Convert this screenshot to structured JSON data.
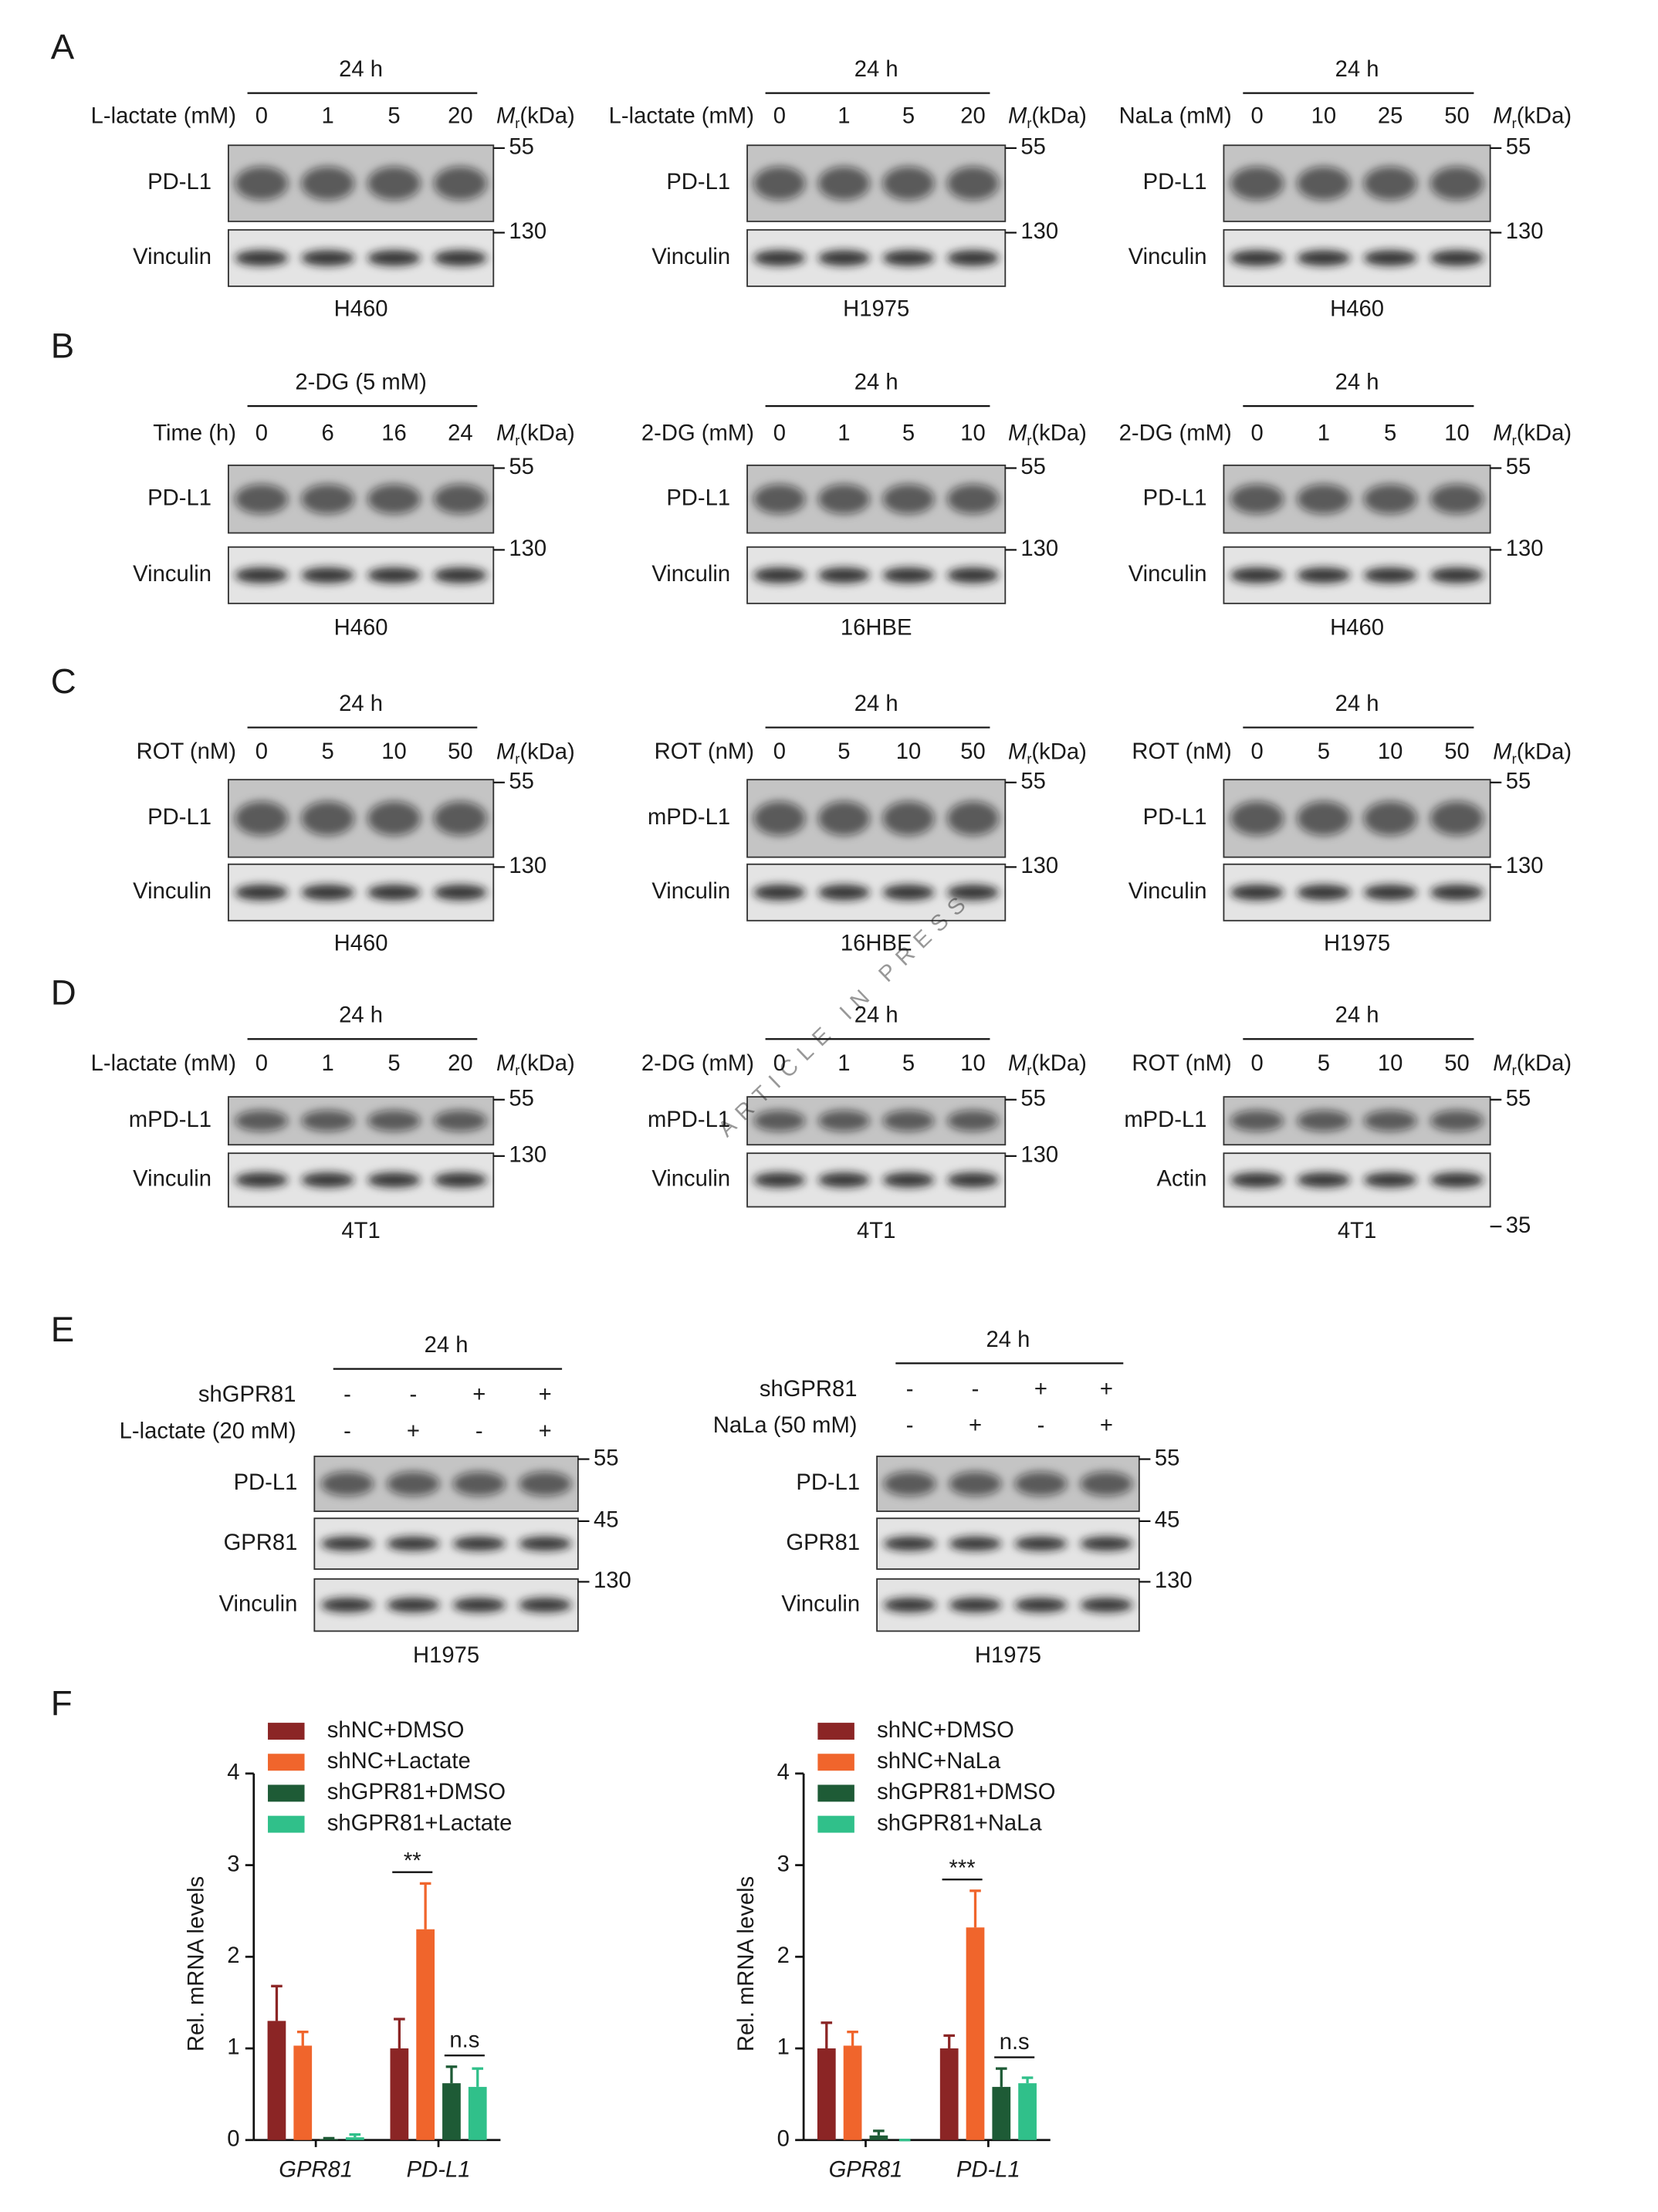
{
  "watermark": "ARTICLE IN PRESS",
  "mr": {
    "symbol": "M",
    "subscript": "r",
    "unit": "(kDa)"
  },
  "panels": [
    {
      "letter": "A",
      "blots": [
        {
          "header": "24 h",
          "conditions": [
            {
              "label": "L-lactate (mM)",
              "lanes": [
                0,
                1,
                5,
                20
              ]
            }
          ],
          "rows": [
            {
              "label": "PD-L1",
              "marker": 55
            },
            {
              "label": "Vinculin",
              "marker": 130
            }
          ],
          "cell": "H460"
        },
        {
          "header": "24 h",
          "conditions": [
            {
              "label": "L-lactate (mM)",
              "lanes": [
                0,
                1,
                5,
                20
              ]
            }
          ],
          "rows": [
            {
              "label": "PD-L1",
              "marker": 55
            },
            {
              "label": "Vinculin",
              "marker": 130
            }
          ],
          "cell": "H1975"
        },
        {
          "header": "24 h",
          "conditions": [
            {
              "label": "NaLa (mM)",
              "lanes": [
                0,
                10,
                25,
                50
              ]
            }
          ],
          "rows": [
            {
              "label": "PD-L1",
              "marker": 55
            },
            {
              "label": "Vinculin",
              "marker": 130
            }
          ],
          "cell": "H460"
        }
      ]
    },
    {
      "letter": "B",
      "blots": [
        {
          "header": "2-DG (5 mM)",
          "conditions": [
            {
              "label": "Time (h)",
              "lanes": [
                0,
                6,
                16,
                24
              ]
            }
          ],
          "rows": [
            {
              "label": "PD-L1",
              "marker": 55
            },
            {
              "label": "Vinculin",
              "marker": 130
            }
          ],
          "cell": "H460"
        },
        {
          "header": "24 h",
          "conditions": [
            {
              "label": "2-DG (mM)",
              "lanes": [
                0,
                1,
                5,
                10
              ]
            }
          ],
          "rows": [
            {
              "label": "PD-L1",
              "marker": 55
            },
            {
              "label": "Vinculin",
              "marker": 130
            }
          ],
          "cell": "16HBE"
        },
        {
          "header": "24 h",
          "conditions": [
            {
              "label": "2-DG (mM)",
              "lanes": [
                0,
                1,
                5,
                10
              ]
            }
          ],
          "rows": [
            {
              "label": "PD-L1",
              "marker": 55
            },
            {
              "label": "Vinculin",
              "marker": 130
            }
          ],
          "cell": "H460"
        }
      ]
    },
    {
      "letter": "C",
      "blots": [
        {
          "header": "24 h",
          "conditions": [
            {
              "label": "ROT (nM)",
              "lanes": [
                0,
                5,
                10,
                50
              ]
            }
          ],
          "rows": [
            {
              "label": "PD-L1",
              "marker": 55
            },
            {
              "label": "Vinculin",
              "marker": 130
            }
          ],
          "cell": "H460"
        },
        {
          "header": "24 h",
          "conditions": [
            {
              "label": "ROT (nM)",
              "lanes": [
                0,
                5,
                10,
                50
              ]
            }
          ],
          "rows": [
            {
              "label": "mPD-L1",
              "marker": 55
            },
            {
              "label": "Vinculin",
              "marker": 130
            }
          ],
          "cell": "16HBE"
        },
        {
          "header": "24 h",
          "conditions": [
            {
              "label": "ROT (nM)",
              "lanes": [
                0,
                5,
                10,
                50
              ]
            }
          ],
          "rows": [
            {
              "label": "PD-L1",
              "marker": 55
            },
            {
              "label": "Vinculin",
              "marker": 130
            }
          ],
          "cell": "H1975"
        }
      ]
    },
    {
      "letter": "D",
      "blots": [
        {
          "header": "24 h",
          "conditions": [
            {
              "label": "L-lactate (mM)",
              "lanes": [
                0,
                1,
                5,
                20
              ]
            }
          ],
          "rows": [
            {
              "label": "mPD-L1",
              "marker": 55
            },
            {
              "label": "Vinculin",
              "marker": 130
            }
          ],
          "cell": "4T1"
        },
        {
          "header": "24 h",
          "conditions": [
            {
              "label": "2-DG (mM)",
              "lanes": [
                0,
                1,
                5,
                10
              ]
            }
          ],
          "rows": [
            {
              "label": "mPD-L1",
              "marker": 55
            },
            {
              "label": "Vinculin",
              "marker": 130
            }
          ],
          "cell": "4T1"
        },
        {
          "header": "24 h",
          "conditions": [
            {
              "label": "ROT (nM)",
              "lanes": [
                0,
                5,
                10,
                50
              ]
            }
          ],
          "rows": [
            {
              "label": "mPD-L1",
              "marker": 55
            },
            {
              "label": "Actin",
              "marker": 35
            }
          ],
          "cell": "4T1"
        }
      ]
    },
    {
      "letter": "E",
      "blots": [
        {
          "header": "24 h",
          "conditions": [
            {
              "label": "shGPR81",
              "lanes": [
                "-",
                "-",
                "+",
                "+"
              ]
            },
            {
              "label": "L-lactate (20 mM)",
              "lanes": [
                "-",
                "+",
                "-",
                "+"
              ]
            }
          ],
          "rows": [
            {
              "label": "PD-L1",
              "marker": 55
            },
            {
              "label": "GPR81",
              "marker": 45
            },
            {
              "label": "Vinculin",
              "marker": 130
            }
          ],
          "cell": "H1975"
        },
        {
          "header": "24 h",
          "conditions": [
            {
              "label": "shGPR81",
              "lanes": [
                "-",
                "-",
                "+",
                "+"
              ]
            },
            {
              "label": "NaLa (50 mM)",
              "lanes": [
                "-",
                "+",
                "-",
                "+"
              ]
            }
          ],
          "rows": [
            {
              "label": "PD-L1",
              "marker": 55
            },
            {
              "label": "GPR81",
              "marker": 45
            },
            {
              "label": "Vinculin",
              "marker": 130
            }
          ],
          "cell": "H1975"
        }
      ]
    },
    {
      "letter": "F"
    }
  ],
  "chart_data": [
    {
      "type": "bar",
      "ylabel": "Rel. mRNA levels",
      "categories": [
        "GPR81",
        "PD-L1"
      ],
      "ylim": [
        0,
        4
      ],
      "yticks": [
        0,
        1,
        2,
        3,
        4
      ],
      "series": [
        {
          "name": "shNC+DMSO",
          "color": "#8b2525",
          "values": [
            1.3,
            1.0
          ],
          "errors": [
            0.38,
            0.32
          ]
        },
        {
          "name": "shNC+Lactate",
          "color": "#f0652c",
          "values": [
            1.03,
            2.3
          ],
          "errors": [
            0.15,
            0.5
          ]
        },
        {
          "name": "shGPR81+DMSO",
          "color": "#1e5b36",
          "values": [
            0.01,
            0.62
          ],
          "errors": [
            0.01,
            0.18
          ]
        },
        {
          "name": "shGPR81+Lactate",
          "color": "#30c08a",
          "values": [
            0.03,
            0.58
          ],
          "errors": [
            0.03,
            0.2
          ]
        }
      ],
      "annotations": [
        "**",
        "n.s"
      ]
    },
    {
      "type": "bar",
      "ylabel": "Rel. mRNA levels",
      "categories": [
        "GPR81",
        "PD-L1"
      ],
      "ylim": [
        0,
        4
      ],
      "yticks": [
        0,
        1,
        2,
        3,
        4
      ],
      "series": [
        {
          "name": "shNC+DMSO",
          "color": "#8b2525",
          "values": [
            1.0,
            1.0
          ],
          "errors": [
            0.28,
            0.14
          ]
        },
        {
          "name": "shNC+NaLa",
          "color": "#f0652c",
          "values": [
            1.03,
            2.32
          ],
          "errors": [
            0.15,
            0.4
          ]
        },
        {
          "name": "shGPR81+DMSO",
          "color": "#1e5b36",
          "values": [
            0.05,
            0.58
          ],
          "errors": [
            0.05,
            0.2
          ]
        },
        {
          "name": "shGPR81+NaLa",
          "color": "#30c08a",
          "values": [
            0.0,
            0.62
          ],
          "errors": [
            0.0,
            0.06
          ]
        }
      ],
      "annotations": [
        "***",
        "n.s"
      ]
    }
  ]
}
